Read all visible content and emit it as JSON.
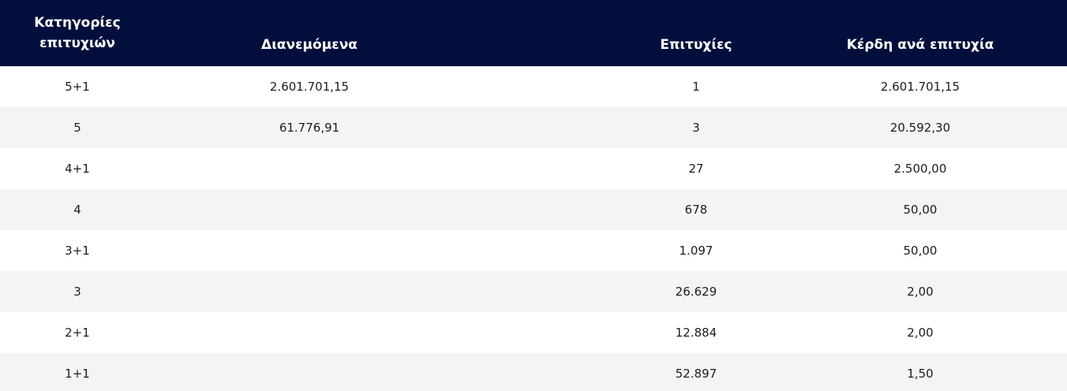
{
  "columns": {
    "category": "Κατηγορίες επιτυχιών",
    "distributed": "Διανεμόμενα",
    "winners": "Επιτυχίες",
    "prize_per_winner": "Κέρδη ανά επιτυχία"
  },
  "rows": [
    {
      "category": "5+1",
      "distributed": "2.601.701,15",
      "winners": "1",
      "prize": "2.601.701,15"
    },
    {
      "category": "5",
      "distributed": "61.776,91",
      "winners": "3",
      "prize": "20.592,30"
    },
    {
      "category": "4+1",
      "distributed": "",
      "winners": "27",
      "prize": "2.500,00"
    },
    {
      "category": "4",
      "distributed": "",
      "winners": "678",
      "prize": "50,00"
    },
    {
      "category": "3+1",
      "distributed": "",
      "winners": "1.097",
      "prize": "50,00"
    },
    {
      "category": "3",
      "distributed": "",
      "winners": "26.629",
      "prize": "2,00"
    },
    {
      "category": "2+1",
      "distributed": "",
      "winners": "12.884",
      "prize": "2,00"
    },
    {
      "category": "1+1",
      "distributed": "",
      "winners": "52.897",
      "prize": "1,50"
    }
  ],
  "colors": {
    "header_background": "#020f3c",
    "header_text": "#ffffff",
    "row_alt_background": "#f4f4f6"
  }
}
